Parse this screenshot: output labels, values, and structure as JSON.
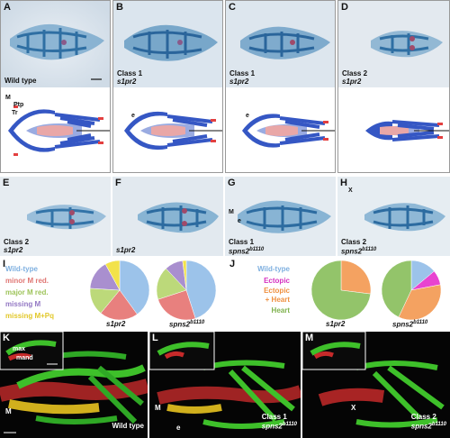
{
  "panels_top": [
    {
      "letter": "A",
      "caption": [
        "Wild type",
        ""
      ]
    },
    {
      "letter": "B",
      "caption": [
        "Class 1",
        "s1pr2"
      ]
    },
    {
      "letter": "C",
      "caption": [
        "Class 1",
        "s1pr2"
      ]
    },
    {
      "letter": "D",
      "caption": [
        "Class 2",
        "s1pr2"
      ]
    }
  ],
  "schematic_labels": {
    "m": "M",
    "ptp": "Ptp",
    "tr": "Tr",
    "e": "e"
  },
  "panels_mid": [
    {
      "letter": "E",
      "caption": [
        "Class 2",
        "s1pr2"
      ]
    },
    {
      "letter": "F",
      "caption": [
        "",
        "s1pr2"
      ]
    },
    {
      "letter": "G",
      "caption": [
        "Class 1",
        "spns2"
      ],
      "sup": "b1110"
    },
    {
      "letter": "H",
      "caption": [
        "Class 2",
        "spns2"
      ],
      "sup": "b1110"
    }
  ],
  "mid_labels": {
    "m": "M",
    "e": "e",
    "x": "X"
  },
  "panel_i": {
    "letter": "I",
    "legend": [
      {
        "label": "Wild-type",
        "color": "#9cc3ea"
      },
      {
        "label": "minor M red.",
        "color": "#e8807e"
      },
      {
        "label": "major M red.",
        "color": "#bcd97a"
      },
      {
        "label": "missing M",
        "color": "#a98fcf"
      },
      {
        "label": "missing M+Pq",
        "color": "#f2e24a"
      }
    ]
  },
  "panel_j": {
    "letter": "J",
    "legend": [
      {
        "label": "Wild-type",
        "color": "#9cc3ea"
      },
      {
        "label": "Ectopic",
        "color": "#e843d0"
      },
      {
        "label": "Ectopic",
        "color": "#f4a261"
      },
      {
        "label": "+ Heart",
        "color": "#f4a261"
      },
      {
        "label": "Heart",
        "color": "#93c46a"
      }
    ]
  },
  "chart_data": [
    {
      "type": "pie",
      "title": "s1pr2",
      "labels": [
        "Wild-type",
        "minor M red.",
        "major M red.",
        "missing M",
        "missing M+Pq"
      ],
      "values": [
        40,
        21,
        15,
        16,
        8
      ],
      "colors": [
        "#9cc3ea",
        "#e8807e",
        "#bcd97a",
        "#a98fcf",
        "#f2e24a"
      ]
    },
    {
      "type": "pie",
      "title": "spns2b1110",
      "labels": [
        "Wild-type",
        "minor M red.",
        "major M red.",
        "missing M",
        "missing M+Pq"
      ],
      "values": [
        45,
        25,
        18,
        10,
        2
      ],
      "colors": [
        "#9cc3ea",
        "#e8807e",
        "#bcd97a",
        "#a98fcf",
        "#f2e24a"
      ]
    },
    {
      "type": "pie",
      "title": "s1pr2",
      "labels": [
        "Wild-type",
        "Ectopic",
        "Ectopic + Heart",
        "Heart"
      ],
      "values": [
        0,
        0,
        27,
        73
      ],
      "colors": [
        "#9cc3ea",
        "#e843d0",
        "#f4a261",
        "#93c46a"
      ]
    },
    {
      "type": "pie",
      "title": "spns2b1110",
      "labels": [
        "Wild-type",
        "Ectopic",
        "Ectopic + Heart",
        "Heart"
      ],
      "values": [
        14,
        8,
        35,
        43
      ],
      "colors": [
        "#9cc3ea",
        "#e843d0",
        "#f4a261",
        "#93c46a"
      ]
    }
  ],
  "pie_captions": [
    {
      "name": "s1pr2",
      "sup": ""
    },
    {
      "name": "spns2",
      "sup": "b1110"
    },
    {
      "name": "s1pr2",
      "sup": ""
    },
    {
      "name": "spns2",
      "sup": "b1110"
    }
  ],
  "panels_bottom": [
    {
      "letter": "K",
      "caption": [
        "",
        "Wild type"
      ],
      "labels": {
        "max": "max",
        "mand": "mand",
        "m": "M"
      }
    },
    {
      "letter": "L",
      "caption": [
        "Class 1",
        "spns2"
      ],
      "sup": "b1110",
      "labels": {
        "m": "M",
        "e": "e"
      }
    },
    {
      "letter": "M",
      "caption": [
        "Class 2",
        "spns2"
      ],
      "sup": "b1110",
      "labels": {
        "x": "X"
      }
    }
  ]
}
